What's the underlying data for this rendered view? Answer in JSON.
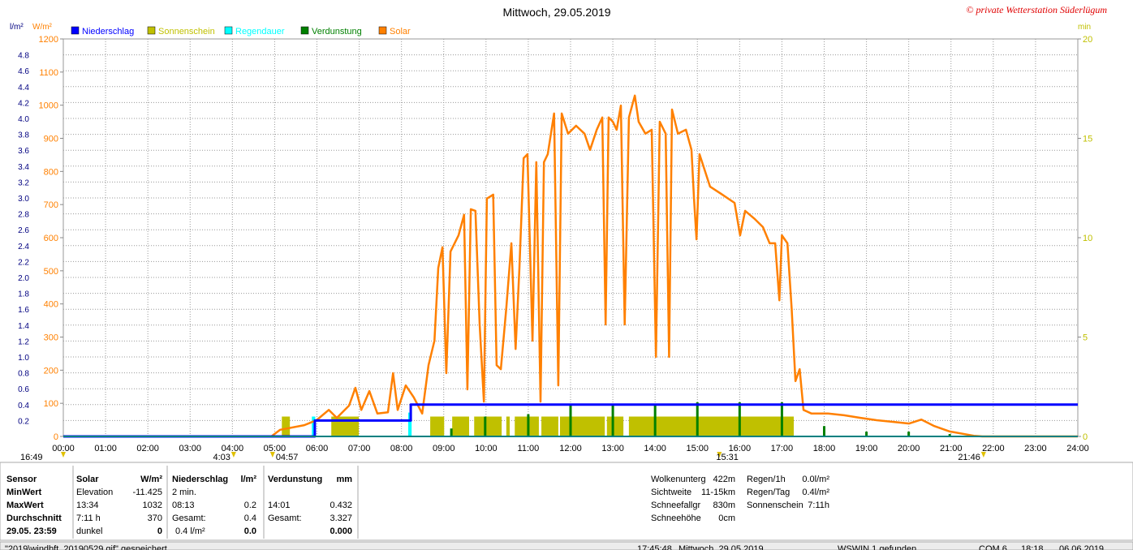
{
  "chart_data": {
    "type": "line",
    "title": "Mittwoch, 29.05.2019",
    "credit": "© private Wetterstation Süderlügum",
    "y_label": "W/m²",
    "y2_label": "l/m²",
    "y3_label": "min",
    "xlim": [
      0,
      24
    ],
    "xticks": [
      {
        "value": 0,
        "label": "00:00"
      },
      {
        "value": 1,
        "label": "01:00"
      },
      {
        "value": 2,
        "label": "02:00"
      },
      {
        "value": 3,
        "label": "03:00"
      },
      {
        "value": 4,
        "label": "04:00"
      },
      {
        "value": 5,
        "label": "05:00"
      },
      {
        "value": 6,
        "label": "06:00"
      },
      {
        "value": 7,
        "label": "07:00"
      },
      {
        "value": 8,
        "label": "08:00"
      },
      {
        "value": 9,
        "label": "09:00"
      },
      {
        "value": 10,
        "label": "10:00"
      },
      {
        "value": 11,
        "label": "11:00"
      },
      {
        "value": 12,
        "label": "12:00"
      },
      {
        "value": 13,
        "label": "13:00"
      },
      {
        "value": 14,
        "label": "14:00"
      },
      {
        "value": 15,
        "label": "15:00"
      },
      {
        "value": 16,
        "label": "16:00"
      },
      {
        "value": 17,
        "label": "17:00"
      },
      {
        "value": 18,
        "label": "18:00"
      },
      {
        "value": 19,
        "label": "19:00"
      },
      {
        "value": 20,
        "label": "20:00"
      },
      {
        "value": 21,
        "label": "21:00"
      },
      {
        "value": 22,
        "label": "22:00"
      },
      {
        "value": 23,
        "label": "23:00"
      },
      {
        "value": 24,
        "label": "24:00"
      }
    ],
    "ylim": [
      0,
      1200
    ],
    "yticks": [
      0,
      100,
      200,
      300,
      400,
      500,
      600,
      700,
      800,
      900,
      1000,
      1100,
      1200
    ],
    "y2lim": [
      0,
      5
    ],
    "y2ticks": [
      0.2,
      0.4,
      0.6,
      0.8,
      {
        "value": 1,
        "label": "1.0"
      },
      1.2,
      1.4,
      1.6,
      1.8,
      {
        "value": 2,
        "label": "2.0"
      },
      2.2,
      2.4,
      2.6,
      2.8,
      {
        "value": 3,
        "label": "3.0"
      },
      3.2,
      3.4,
      3.6,
      3.8,
      {
        "value": 4,
        "label": "4.0"
      },
      4.2,
      4.4,
      4.6,
      4.8
    ],
    "y3lim": [
      0,
      20
    ],
    "y3ticks": [
      0,
      5,
      10,
      15,
      20
    ],
    "grid": true,
    "series": [
      {
        "name": "Niederschlag",
        "color": "#0000ff",
        "type": "line",
        "axis": "y2",
        "x": [
          0,
          5.95,
          5.95,
          8.22,
          8.22,
          24
        ],
        "values": [
          0,
          0,
          0.2,
          0.2,
          0.4,
          0.4
        ]
      },
      {
        "name": "Sonnenschein",
        "color": "#c0c000",
        "type": "bar",
        "axis": "y3",
        "x_start": [
          5.17,
          6.34,
          8.68,
          9.2,
          9.72,
          10.48,
          10.68,
          11.31,
          11.75,
          12.86,
          13.38
        ],
        "x_end": [
          5.36,
          6.99,
          9.01,
          9.6,
          10.37,
          10.56,
          11.25,
          11.71,
          12.81,
          13.25,
          17.28
        ],
        "values": [
          1,
          1,
          1,
          1,
          1,
          1,
          1,
          1,
          1,
          1,
          1
        ]
      },
      {
        "name": "Regendauer",
        "color": "#00ffff",
        "type": "bar",
        "axis": "y3",
        "x_start": [
          5.88,
          8.16
        ],
        "x_end": [
          5.96,
          8.24
        ],
        "values": [
          1,
          1.2
        ]
      },
      {
        "name": "Verdunstung",
        "color": "#008000",
        "type": "bar",
        "axis": "y2",
        "x": [
          9.18,
          9.98,
          11.0,
          12.0,
          13.0,
          14.0,
          15.0,
          16.0,
          17.0,
          18.0,
          19.0,
          20.0,
          20.97
        ],
        "values": [
          0.1,
          0.25,
          0.28,
          0.39,
          0.4,
          0.4,
          0.43,
          0.43,
          0.43,
          0.13,
          0.06,
          0.06,
          0.03
        ]
      },
      {
        "name": "Solar",
        "color": "#ff8000",
        "type": "line",
        "axis": "y",
        "x": [
          0,
          4.92,
          5.13,
          5.7,
          5.99,
          6.28,
          6.47,
          6.76,
          6.91,
          7.05,
          7.24,
          7.43,
          7.68,
          7.8,
          7.91,
          8.1,
          8.29,
          8.49,
          8.64,
          8.78,
          8.87,
          8.97,
          9.06,
          9.16,
          9.35,
          9.48,
          9.56,
          9.64,
          9.75,
          9.85,
          9.95,
          10.02,
          10.17,
          10.25,
          10.35,
          10.48,
          10.6,
          10.7,
          10.79,
          10.89,
          10.98,
          11.1,
          11.19,
          11.29,
          11.37,
          11.46,
          11.61,
          11.71,
          11.79,
          11.94,
          12.13,
          12.33,
          12.46,
          12.62,
          12.75,
          12.83,
          12.9,
          13.0,
          13.09,
          13.19,
          13.28,
          13.38,
          13.52,
          13.61,
          13.77,
          13.92,
          14.02,
          14.11,
          14.25,
          14.33,
          14.4,
          14.54,
          14.73,
          14.86,
          14.92,
          14.98,
          15.05,
          15.3,
          15.59,
          15.88,
          16.01,
          16.13,
          16.36,
          16.55,
          16.71,
          16.84,
          16.94,
          17.0,
          17.13,
          17.23,
          17.32,
          17.42,
          17.51,
          17.7,
          18.09,
          18.47,
          18.86,
          19.24,
          19.62,
          20.01,
          20.3,
          20.59,
          20.97,
          21.54,
          21.74,
          24
        ],
        "values": [
          0,
          0,
          20,
          34,
          49,
          80,
          56,
          93,
          147,
          80,
          137,
          69,
          73,
          191,
          80,
          154,
          118,
          69,
          215,
          289,
          509,
          571,
          191,
          558,
          607,
          669,
          142,
          686,
          681,
          338,
          105,
          718,
          730,
          215,
          203,
          387,
          583,
          264,
          509,
          840,
          852,
          289,
          828,
          105,
          828,
          852,
          975,
          154,
          975,
          914,
          938,
          914,
          865,
          926,
          963,
          338,
          963,
          950,
          926,
          999,
          338,
          963,
          1029,
          950,
          914,
          926,
          240,
          950,
          914,
          240,
          987,
          914,
          926,
          865,
          718,
          595,
          852,
          754,
          730,
          705,
          607,
          681,
          656,
          632,
          583,
          583,
          411,
          607,
          583,
          387,
          167,
          203,
          80,
          69,
          69,
          64,
          56,
          49,
          44,
          39,
          51,
          32,
          15,
          2,
          0,
          0
        ]
      }
    ],
    "annotations": [
      {
        "x": 0,
        "text": "16:49"
      },
      {
        "x": 4.03,
        "text": "4:03"
      },
      {
        "x": 4.95,
        "text": "04:57"
      },
      {
        "x": 15.52,
        "text": "15:31"
      },
      {
        "x": 21.77,
        "text": "21:46"
      }
    ]
  },
  "info": {
    "labels": [
      "Sensor",
      "MinWert",
      "MaxWert",
      "Durchschnitt",
      "29.05. 23:59"
    ],
    "solar": {
      "header": [
        "Solar",
        "W/m²"
      ],
      "rows": [
        [
          "Elevation",
          "-11.425"
        ],
        [
          "13:34",
          "1032"
        ],
        [
          "7:11 h",
          "370"
        ],
        [
          "dunkel",
          "0"
        ]
      ]
    },
    "niederschlag": {
      "header": [
        "Niederschlag",
        "l/m²"
      ],
      "rows": [
        [
          "2 min."
        ],
        [
          "08:13",
          "0.2"
        ],
        [
          "Gesamt:",
          "0.4"
        ],
        [
          "0.4 l/m²",
          "0.0"
        ]
      ]
    },
    "verdunstung": {
      "header": [
        "Verdunstung",
        "mm"
      ],
      "rows": [
        [
          "14:01",
          "0.432"
        ],
        [
          "Gesamt:",
          "3.327"
        ],
        [
          "0.000"
        ]
      ]
    },
    "weather": [
      [
        "Wolkenunterg",
        "422m"
      ],
      [
        "Sichtweite",
        "11-15km"
      ],
      [
        "Schneefallgr",
        "830m"
      ],
      [
        "Schneehöhe",
        "0cm"
      ]
    ],
    "rain": [
      [
        "Regen/1h",
        "0.0l/m²"
      ],
      [
        "Regen/Tag",
        "0.4l/m²"
      ],
      [
        "Sonnenschein",
        "7:11h"
      ]
    ]
  },
  "status": [
    "\"2019\\windbft_20190529.gif\" gespeichert",
    "17:45:48",
    "Mittwoch, 29.05.2019",
    "WSWIN 1 gefunden",
    "COM 6",
    "18:18",
    "06.06.2019"
  ]
}
